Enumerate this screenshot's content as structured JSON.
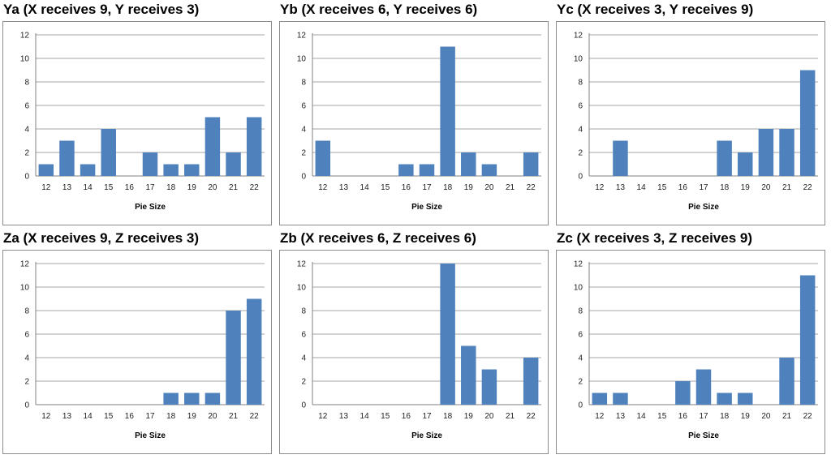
{
  "colors": {
    "bar": "#4f81bd",
    "grid": "#a6a6a6",
    "axis": "#808080"
  },
  "chart_data": [
    {
      "type": "bar",
      "title": "Ya (X receives 9, Y receives 3)",
      "xlabel": "Pie Size",
      "ylabel": "",
      "categories": [
        "12",
        "13",
        "14",
        "15",
        "16",
        "17",
        "18",
        "19",
        "20",
        "21",
        "22"
      ],
      "values": [
        1,
        3,
        1,
        4,
        0,
        2,
        1,
        1,
        5,
        2,
        5
      ],
      "ylim": [
        0,
        12
      ],
      "yticks": [
        "0",
        "2",
        "4",
        "6",
        "8",
        "10",
        "12"
      ],
      "grid": true
    },
    {
      "type": "bar",
      "title": "Yb (X receives 6, Y receives 6)",
      "xlabel": "Pie Size",
      "ylabel": "",
      "categories": [
        "12",
        "13",
        "14",
        "15",
        "16",
        "17",
        "18",
        "19",
        "20",
        "21",
        "22"
      ],
      "values": [
        3,
        0,
        0,
        0,
        1,
        1,
        11,
        2,
        1,
        0,
        2
      ],
      "ylim": [
        0,
        12
      ],
      "yticks": [
        "0",
        "2",
        "4",
        "6",
        "8",
        "10",
        "12"
      ],
      "grid": true
    },
    {
      "type": "bar",
      "title": "Yc (X receives 3, Y receives 9)",
      "xlabel": "Pie Size",
      "ylabel": "",
      "categories": [
        "12",
        "13",
        "14",
        "15",
        "16",
        "17",
        "18",
        "19",
        "20",
        "21",
        "22"
      ],
      "values": [
        0,
        3,
        0,
        0,
        0,
        0,
        3,
        2,
        4,
        4,
        9
      ],
      "ylim": [
        0,
        12
      ],
      "yticks": [
        "0",
        "2",
        "4",
        "6",
        "8",
        "10",
        "12"
      ],
      "grid": true
    },
    {
      "type": "bar",
      "title": "Za (X receives 9, Z receives 3)",
      "xlabel": "Pie Size",
      "ylabel": "",
      "categories": [
        "12",
        "13",
        "14",
        "15",
        "16",
        "17",
        "18",
        "19",
        "20",
        "21",
        "22"
      ],
      "values": [
        0,
        0,
        0,
        0,
        0,
        0,
        1,
        1,
        1,
        8,
        9
      ],
      "ylim": [
        0,
        12
      ],
      "yticks": [
        "0",
        "2",
        "4",
        "6",
        "8",
        "10",
        "12"
      ],
      "grid": true
    },
    {
      "type": "bar",
      "title": "Zb (X receives 6, Z receives 6)",
      "xlabel": "Pie Size",
      "ylabel": "",
      "categories": [
        "12",
        "13",
        "14",
        "15",
        "16",
        "17",
        "18",
        "19",
        "20",
        "21",
        "22"
      ],
      "values": [
        0,
        0,
        0,
        0,
        0,
        0,
        12,
        5,
        3,
        0,
        4
      ],
      "ylim": [
        0,
        12
      ],
      "yticks": [
        "0",
        "2",
        "4",
        "6",
        "8",
        "10",
        "12"
      ],
      "grid": true
    },
    {
      "type": "bar",
      "title": "Zc (X receives 3, Z receives 9)",
      "xlabel": "Pie Size",
      "ylabel": "",
      "categories": [
        "12",
        "13",
        "14",
        "15",
        "16",
        "17",
        "18",
        "19",
        "20",
        "21",
        "22"
      ],
      "values": [
        1,
        1,
        0,
        0,
        2,
        3,
        1,
        1,
        0,
        4,
        11
      ],
      "ylim": [
        0,
        12
      ],
      "yticks": [
        "0",
        "2",
        "4",
        "6",
        "8",
        "10",
        "12"
      ],
      "grid": true
    }
  ]
}
